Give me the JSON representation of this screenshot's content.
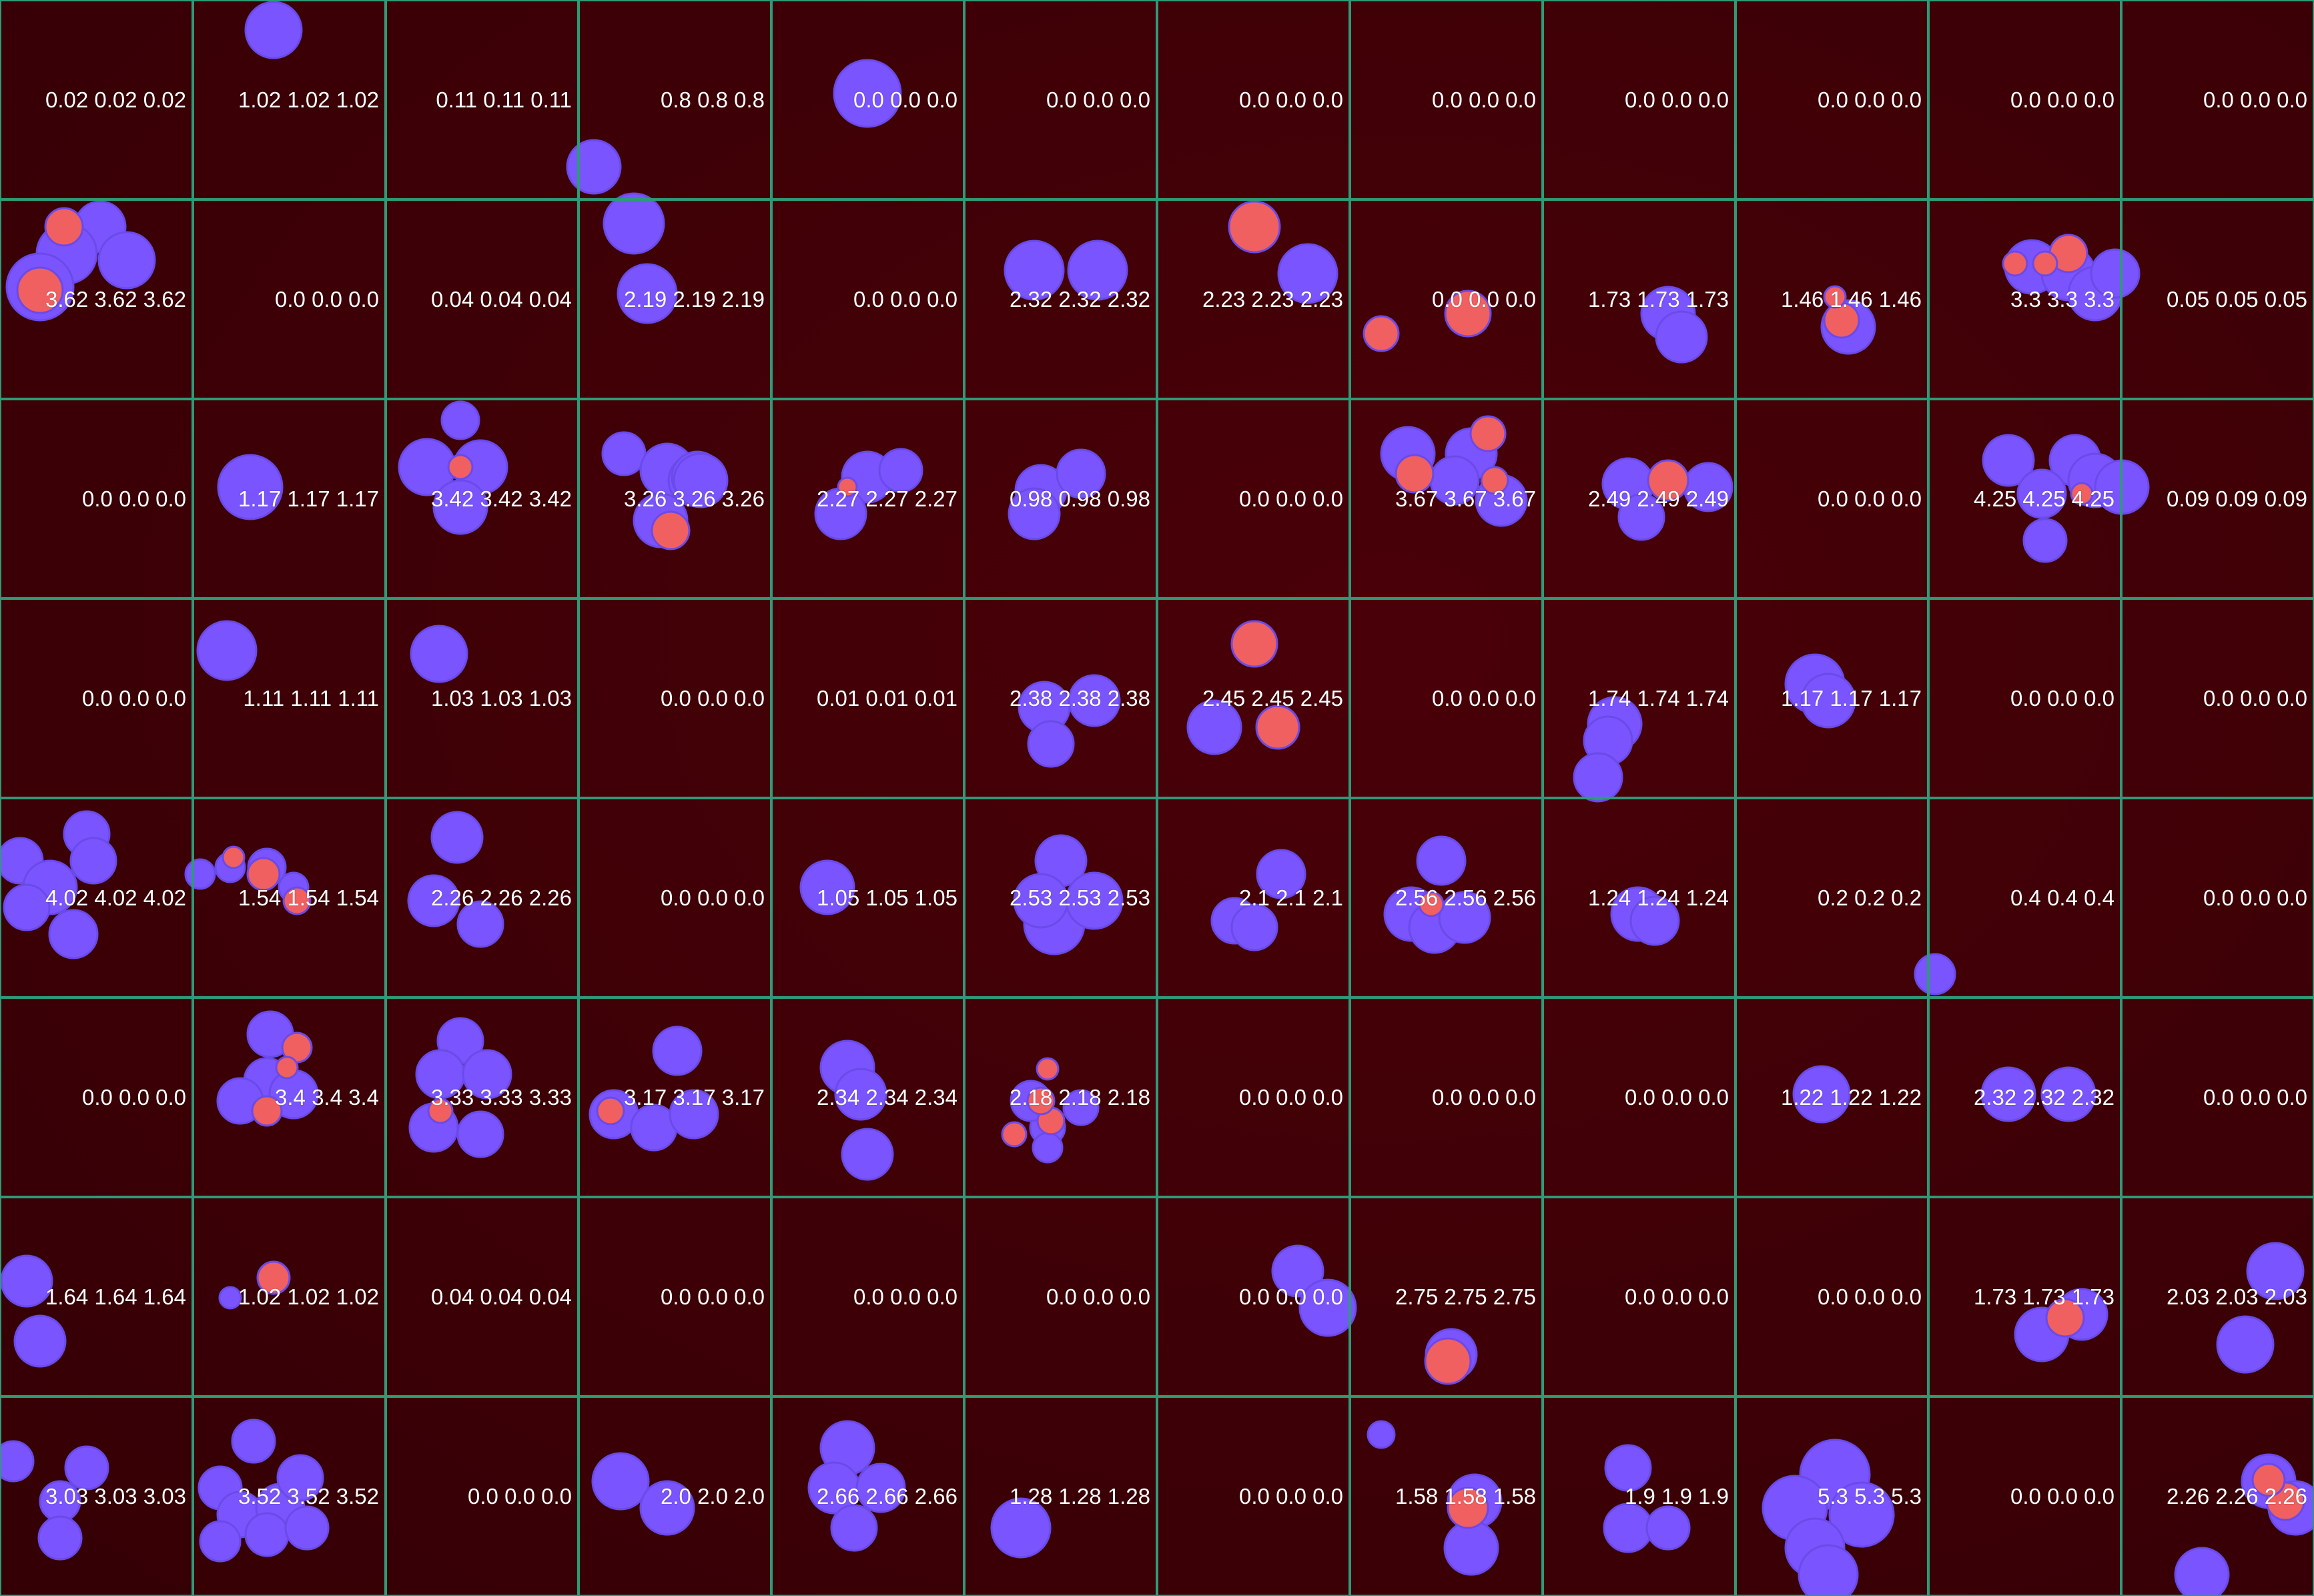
{
  "image": {
    "colors": {
      "background": "#3e0006",
      "grid_line": "#2e9a78",
      "nucleus": "#7a55ff",
      "nucleus_edge": "#6a4ae8",
      "marker": "#f06060",
      "label_text": "#ffffff"
    }
  },
  "grid": {
    "rows": 8,
    "cols": 12,
    "values": [
      [
        "0.02 0.02 0.02",
        "1.02 1.02 1.02",
        "0.11 0.11 0.11",
        "0.8 0.8 0.8",
        "0.0 0.0 0.0",
        "0.0 0.0 0.0",
        "0.0 0.0 0.0",
        "0.0 0.0 0.0",
        "0.0 0.0 0.0",
        "0.0 0.0 0.0",
        "0.0 0.0 0.0",
        "0.0 0.0 0.0"
      ],
      [
        "3.62 3.62 3.62",
        "0.0 0.0 0.0",
        "0.04 0.04 0.04",
        "2.19 2.19 2.19",
        "0.0 0.0 0.0",
        "2.32 2.32 2.32",
        "2.23 2.23 2.23",
        "0.0 0.0 0.0",
        "1.73 1.73 1.73",
        "1.46 1.46 1.46",
        "3.3 3.3 3.3",
        "0.05 0.05 0.05"
      ],
      [
        "0.0 0.0 0.0",
        "1.17 1.17 1.17",
        "3.42 3.42 3.42",
        "3.26 3.26 3.26",
        "2.27 2.27 2.27",
        "0.98 0.98 0.98",
        "0.0 0.0 0.0",
        "3.67 3.67 3.67",
        "2.49 2.49 2.49",
        "0.0 0.0 0.0",
        "4.25 4.25 4.25",
        "0.09 0.09 0.09"
      ],
      [
        "0.0 0.0 0.0",
        "1.11 1.11 1.11",
        "1.03 1.03 1.03",
        "0.0 0.0 0.0",
        "0.01 0.01 0.01",
        "2.38 2.38 2.38",
        "2.45 2.45 2.45",
        "0.0 0.0 0.0",
        "1.74 1.74 1.74",
        "1.17 1.17 1.17",
        "0.0 0.0 0.0",
        "0.0 0.0 0.0"
      ],
      [
        "4.02 4.02 4.02",
        "1.54 1.54 1.54",
        "2.26 2.26 2.26",
        "0.0 0.0 0.0",
        "1.05 1.05 1.05",
        "2.53 2.53 2.53",
        "2.1 2.1 2.1",
        "2.56 2.56 2.56",
        "1.24 1.24 1.24",
        "0.2 0.2 0.2",
        "0.4 0.4 0.4",
        "0.0 0.0 0.0"
      ],
      [
        "0.0 0.0 0.0",
        "3.4 3.4 3.4",
        "3.33 3.33 3.33",
        "3.17 3.17 3.17",
        "2.34 2.34 2.34",
        "2.18 2.18 2.18",
        "0.0 0.0 0.0",
        "0.0 0.0 0.0",
        "0.0 0.0 0.0",
        "1.22 1.22 1.22",
        "2.32 2.32 2.32",
        "0.0 0.0 0.0"
      ],
      [
        "1.64 1.64 1.64",
        "1.02 1.02 1.02",
        "0.04 0.04 0.04",
        "0.0 0.0 0.0",
        "0.0 0.0 0.0",
        "0.0 0.0 0.0",
        "0.0 0.0 0.0",
        "2.75 2.75 2.75",
        "0.0 0.0 0.0",
        "0.0 0.0 0.0",
        "1.73 1.73 1.73",
        "2.03 2.03 2.03"
      ],
      [
        "3.03 3.03 3.03",
        "3.52 3.52 3.52",
        "0.0 0.0 0.0",
        "2.0 2.0 2.0",
        "2.66 2.66 2.66",
        "1.28 1.28 1.28",
        "0.0 0.0 0.0",
        "1.58 1.58 1.58",
        "1.9 1.9 1.9",
        "5.3 5.3 5.3",
        "0.0 0.0 0.0",
        "2.26 2.26 2.26"
      ]
    ]
  }
}
